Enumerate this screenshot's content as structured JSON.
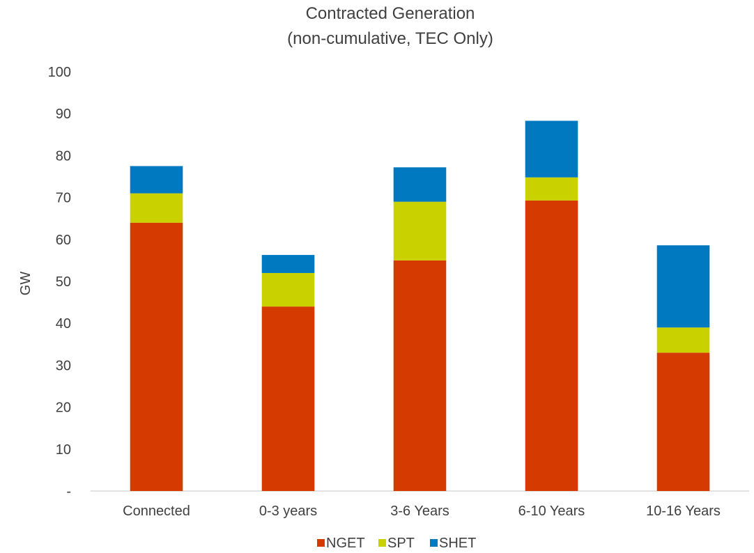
{
  "chart_data": {
    "type": "bar",
    "stacked": true,
    "title": "Contracted Generation",
    "subtitle": "(non-cumulative, TEC Only)",
    "xlabel": "",
    "ylabel": "GW",
    "ylim": [
      0,
      100
    ],
    "yticks": [
      "-",
      "10",
      "20",
      "30",
      "40",
      "50",
      "60",
      "70",
      "80",
      "90",
      "100"
    ],
    "categories": [
      "Connected",
      "0-3 years",
      "3-6 Years",
      "6-10 Years",
      "10-16 Years"
    ],
    "series": [
      {
        "name": "NGET",
        "color": "#D53A00",
        "values": [
          64,
          44,
          55,
          69.3,
          33
        ]
      },
      {
        "name": "SPT",
        "color": "#C9D200",
        "values": [
          7,
          8,
          14,
          5.5,
          6
        ]
      },
      {
        "name": "SHET",
        "color": "#0079C1",
        "values": [
          6.5,
          4.3,
          8.2,
          13.5,
          19.6
        ]
      }
    ],
    "legend_position": "bottom",
    "grid": false
  }
}
